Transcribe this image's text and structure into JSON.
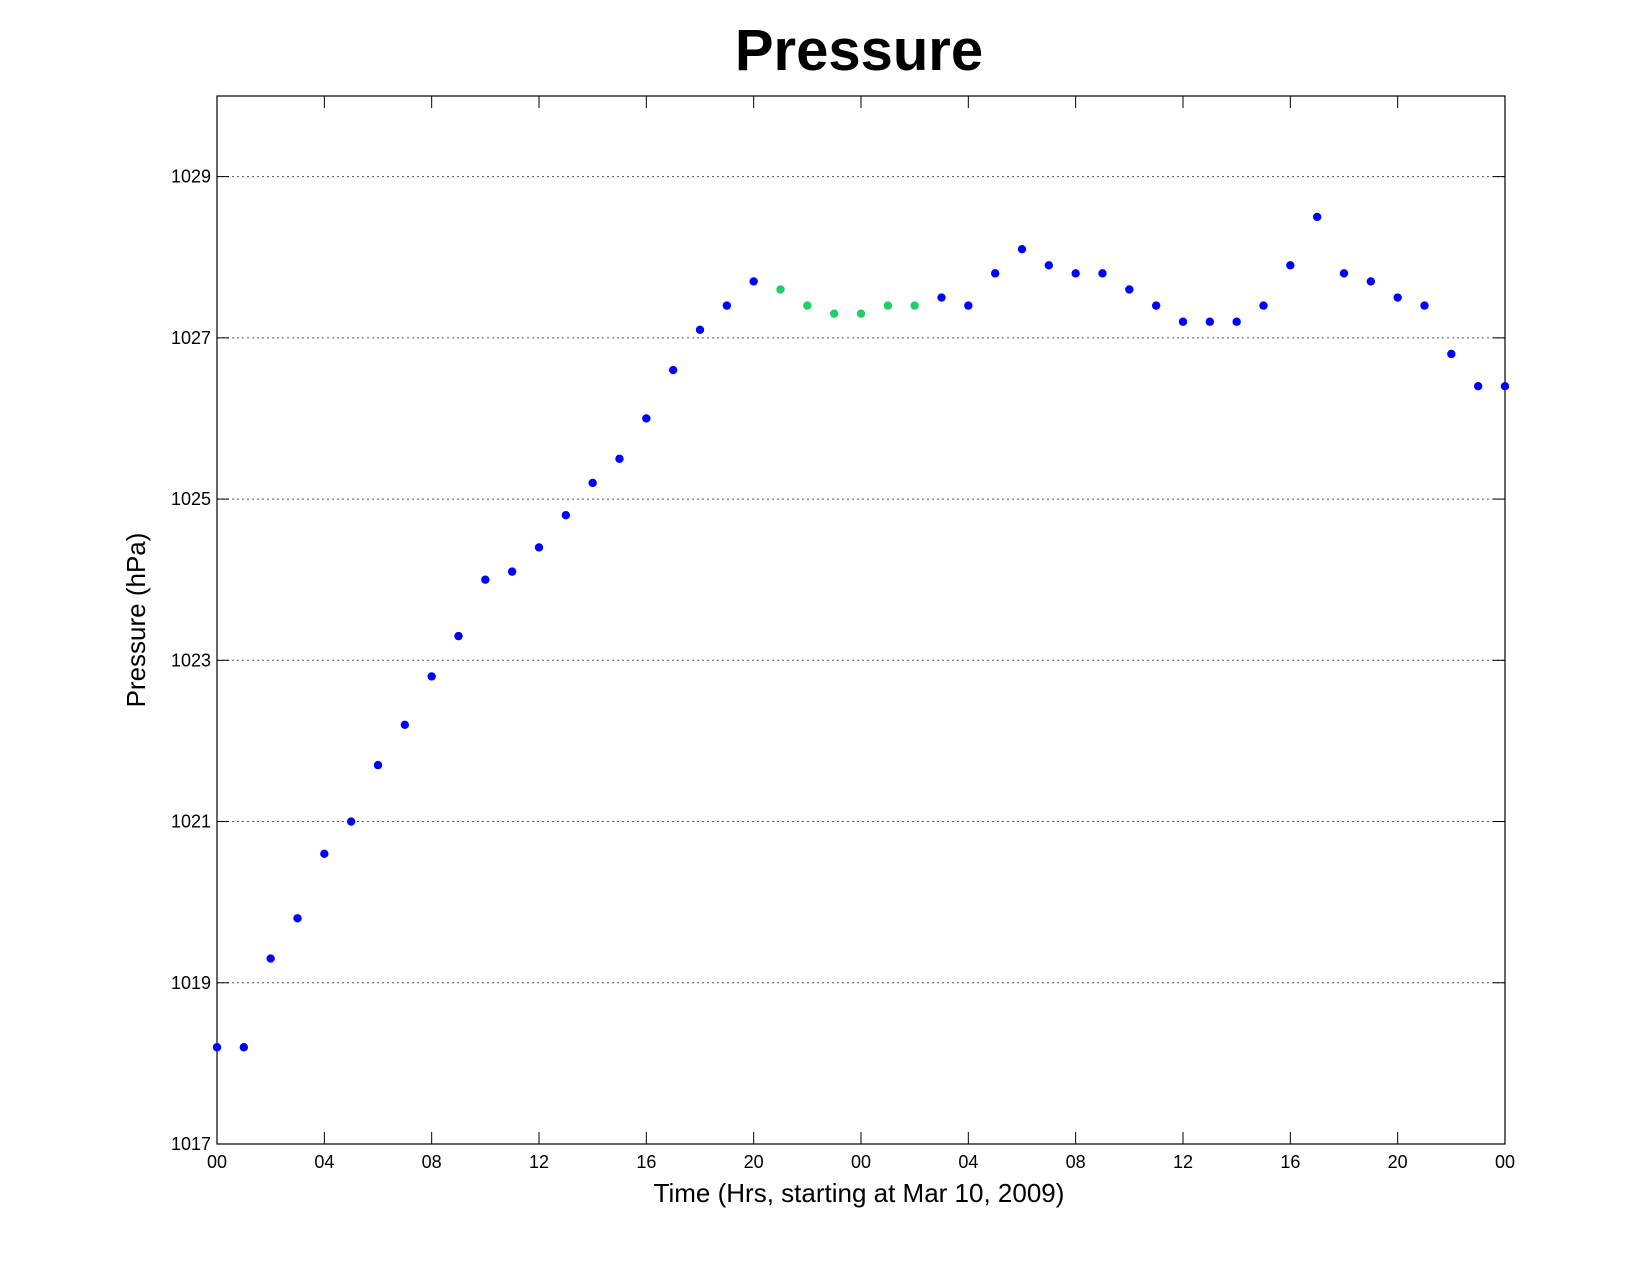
{
  "chart_data": {
    "type": "scatter",
    "title": "Pressure",
    "xlabel": "Time (Hrs, starting at Mar 10, 2009)",
    "ylabel": "Pressure (hPa)",
    "xlim": [
      0,
      48
    ],
    "ylim": [
      1017,
      1030
    ],
    "grid": "horizontal dotted",
    "x_tick_values": [
      0,
      4,
      8,
      12,
      16,
      20,
      24,
      28,
      32,
      36,
      40,
      44,
      48
    ],
    "x_tick_labels": [
      "00",
      "04",
      "08",
      "12",
      "16",
      "20",
      "00",
      "04",
      "08",
      "12",
      "16",
      "20",
      "00"
    ],
    "y_tick_values": [
      1017,
      1019,
      1021,
      1023,
      1025,
      1027,
      1029
    ],
    "y_tick_labels": [
      "1017",
      "1019",
      "1021",
      "1023",
      "1025",
      "1027",
      "1029"
    ],
    "colors": {
      "blue": "#0000ff",
      "green": "#22cc66"
    },
    "points": [
      {
        "x": 0,
        "y": 1018.2,
        "color": "blue"
      },
      {
        "x": 1,
        "y": 1018.2,
        "color": "blue"
      },
      {
        "x": 2,
        "y": 1019.3,
        "color": "blue"
      },
      {
        "x": 3,
        "y": 1019.8,
        "color": "blue"
      },
      {
        "x": 4,
        "y": 1020.6,
        "color": "blue"
      },
      {
        "x": 5,
        "y": 1021.0,
        "color": "blue"
      },
      {
        "x": 6,
        "y": 1021.7,
        "color": "blue"
      },
      {
        "x": 7,
        "y": 1022.2,
        "color": "blue"
      },
      {
        "x": 8,
        "y": 1022.8,
        "color": "blue"
      },
      {
        "x": 9,
        "y": 1023.3,
        "color": "blue"
      },
      {
        "x": 10,
        "y": 1024.0,
        "color": "blue"
      },
      {
        "x": 11,
        "y": 1024.1,
        "color": "blue"
      },
      {
        "x": 12,
        "y": 1024.4,
        "color": "blue"
      },
      {
        "x": 13,
        "y": 1024.8,
        "color": "blue"
      },
      {
        "x": 14,
        "y": 1025.2,
        "color": "blue"
      },
      {
        "x": 15,
        "y": 1025.5,
        "color": "blue"
      },
      {
        "x": 16,
        "y": 1026.0,
        "color": "blue"
      },
      {
        "x": 17,
        "y": 1026.6,
        "color": "blue"
      },
      {
        "x": 18,
        "y": 1027.1,
        "color": "blue"
      },
      {
        "x": 19,
        "y": 1027.4,
        "color": "blue"
      },
      {
        "x": 20,
        "y": 1027.7,
        "color": "blue"
      },
      {
        "x": 21,
        "y": 1027.6,
        "color": "green"
      },
      {
        "x": 22,
        "y": 1027.4,
        "color": "green"
      },
      {
        "x": 23,
        "y": 1027.3,
        "color": "green"
      },
      {
        "x": 24,
        "y": 1027.3,
        "color": "green"
      },
      {
        "x": 25,
        "y": 1027.4,
        "color": "green"
      },
      {
        "x": 26,
        "y": 1027.4,
        "color": "green"
      },
      {
        "x": 27,
        "y": 1027.5,
        "color": "blue"
      },
      {
        "x": 28,
        "y": 1027.4,
        "color": "blue"
      },
      {
        "x": 29,
        "y": 1027.8,
        "color": "blue"
      },
      {
        "x": 30,
        "y": 1028.1,
        "color": "blue"
      },
      {
        "x": 31,
        "y": 1027.9,
        "color": "blue"
      },
      {
        "x": 32,
        "y": 1027.8,
        "color": "blue"
      },
      {
        "x": 33,
        "y": 1027.8,
        "color": "blue"
      },
      {
        "x": 34,
        "y": 1027.6,
        "color": "blue"
      },
      {
        "x": 35,
        "y": 1027.4,
        "color": "blue"
      },
      {
        "x": 36,
        "y": 1027.2,
        "color": "blue"
      },
      {
        "x": 37,
        "y": 1027.2,
        "color": "blue"
      },
      {
        "x": 38,
        "y": 1027.2,
        "color": "blue"
      },
      {
        "x": 39,
        "y": 1027.4,
        "color": "blue"
      },
      {
        "x": 40,
        "y": 1027.9,
        "color": "blue"
      },
      {
        "x": 41,
        "y": 1028.5,
        "color": "blue"
      },
      {
        "x": 42,
        "y": 1027.8,
        "color": "blue"
      },
      {
        "x": 43,
        "y": 1027.7,
        "color": "blue"
      },
      {
        "x": 44,
        "y": 1027.5,
        "color": "blue"
      },
      {
        "x": 45,
        "y": 1027.4,
        "color": "blue"
      },
      {
        "x": 46,
        "y": 1026.8,
        "color": "blue"
      },
      {
        "x": 47,
        "y": 1026.4,
        "color": "blue"
      },
      {
        "x": 48,
        "y": 1026.4,
        "color": "blue"
      }
    ]
  }
}
